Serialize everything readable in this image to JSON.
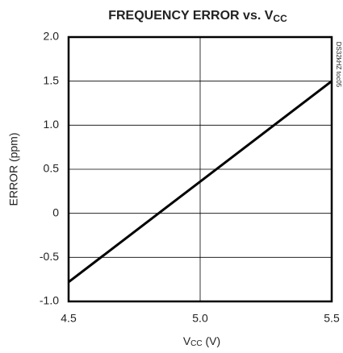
{
  "chart_data": {
    "type": "line",
    "title": "FREQUENCY ERROR vs. V",
    "title_subscript": "CC",
    "xlabel": [
      "V",
      "CC",
      " (V)"
    ],
    "ylabel": "ERROR (ppm)",
    "watermark": "DS32kHZ toc05",
    "x": [
      4.5,
      5.5
    ],
    "series": [
      {
        "name": "ERROR",
        "color": "#000000",
        "values": [
          -0.78,
          1.5
        ]
      }
    ],
    "xlim": [
      4.5,
      5.5
    ],
    "xticks": [
      4.5,
      {
        "value": 5.0,
        "label": "5.0"
      },
      5.5
    ],
    "ylim": [
      -1.0,
      2.0
    ],
    "yticks": [
      {
        "value": -1.0,
        "label": "-1.0"
      },
      -0.5,
      0,
      0.5,
      {
        "value": 1.0,
        "label": "1.0"
      },
      1.5,
      {
        "value": 2.0,
        "label": "2.0"
      }
    ],
    "xgrid": [
      {
        "value": 5.0,
        "label": "5.0"
      }
    ],
    "grid": true
  }
}
